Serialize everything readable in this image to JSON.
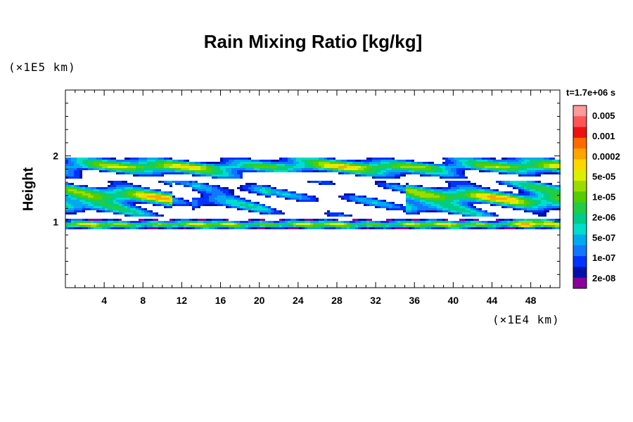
{
  "chart_data": {
    "type": "heatmap",
    "title": "Rain Mixing Ratio [kg/kg]",
    "ylabel": "Height",
    "xlabel": "",
    "x_scale_label": "(×1E4 km)",
    "y_scale_label": "(×1E5 km)",
    "timestamp": "t=1.7e+06 s",
    "xlim": [
      0,
      51
    ],
    "ylim": [
      0,
      3
    ],
    "x_ticks": [
      "4",
      "8",
      "12",
      "16",
      "20",
      "24",
      "28",
      "32",
      "36",
      "40",
      "44",
      "48"
    ],
    "y_ticks": [
      "1",
      "2"
    ],
    "colorbar": {
      "labels": [
        "0.005",
        "0.001",
        "0.0002",
        "5e-05",
        "1e-05",
        "2e-06",
        "5e-07",
        "1e-07",
        "2e-08"
      ],
      "colors": [
        "#ff9a9a",
        "#ff5555",
        "#ee1111",
        "#ff6a00",
        "#ffa500",
        "#ffd700",
        "#ddee00",
        "#99dd00",
        "#55cc00",
        "#22cc44",
        "#00cc88",
        "#00ddcc",
        "#00aaee",
        "#1177ff",
        "#0033ff",
        "#0011aa",
        "#880099"
      ]
    },
    "bands": [
      {
        "y_range": [
          0.9,
          1.05
        ],
        "description": "thin continuous layer near height 1"
      },
      {
        "y_range": [
          1.1,
          1.65
        ],
        "description": "patchy layer, strongest at x 0-10 and 36-51"
      },
      {
        "y_range": [
          1.7,
          2.0
        ],
        "description": "continuous layer near height 2"
      }
    ]
  }
}
